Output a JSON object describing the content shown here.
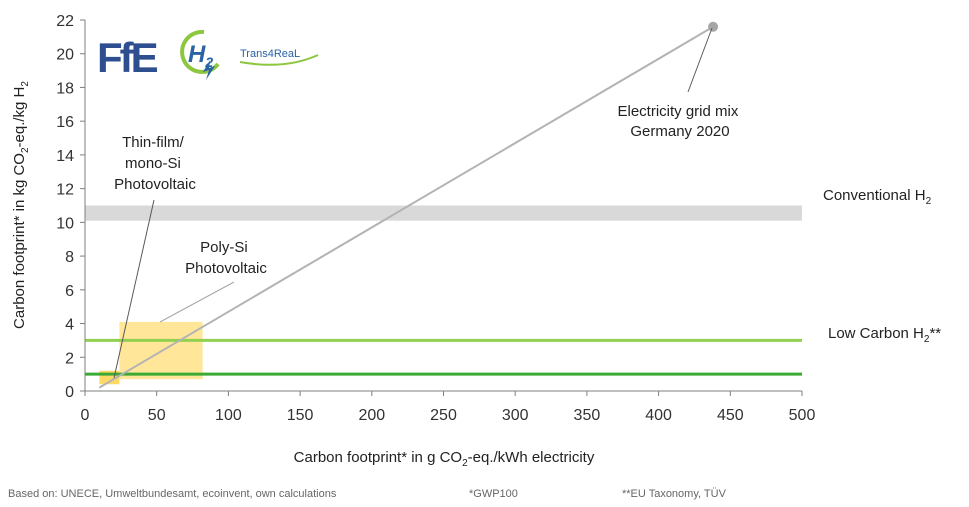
{
  "chart_data": {
    "type": "line",
    "xlabel_parts": [
      "Carbon footprint* in g CO",
      "2",
      "-eq./kWh electricity"
    ],
    "ylabel_parts": [
      "Carbon footprint* in kg CO",
      "2",
      "-eq./kg H",
      "2"
    ],
    "xlim": [
      0,
      500
    ],
    "ylim": [
      0,
      22
    ],
    "x_ticks": [
      "0",
      "50",
      "100",
      "150",
      "200",
      "250",
      "300",
      "350",
      "400",
      "450",
      "500"
    ],
    "y_ticks": [
      "0",
      "2",
      "4",
      "6",
      "8",
      "10",
      "12",
      "14",
      "16",
      "18",
      "20",
      "22"
    ],
    "grid": false,
    "series": [
      {
        "values_x": [
          10,
          438
        ],
        "values_y": [
          0.2,
          21.6
        ],
        "color": "#b3b3b3"
      }
    ],
    "bands": [
      {
        "y_range": [
          10.1,
          11.0
        ],
        "x_range": [
          0,
          500
        ],
        "color": "#d9d9d9"
      }
    ],
    "threshold_lines": [
      {
        "y": 3.0,
        "color": "#92d050"
      },
      {
        "y": 1.0,
        "color": "#3aaa35"
      }
    ],
    "boxes": [
      {
        "x_range": [
          24,
          82
        ],
        "y_range": [
          0.7,
          4.1
        ],
        "color": "#ffe699"
      },
      {
        "x_range": [
          10,
          24
        ],
        "y_range": [
          0.4,
          1.2
        ],
        "color": "#ffd966"
      }
    ],
    "marker": {
      "x": 438,
      "y": 21.6,
      "color": "#a6a6a6"
    },
    "annotations": {
      "grid_mix": [
        "Electricity grid mix",
        "Germany 2020"
      ],
      "conventional": [
        "Conventional H",
        "2"
      ],
      "low_carbon": [
        "Low Carbon H",
        "2",
        "**"
      ],
      "thin_film": [
        "Thin-film/",
        "mono-Si",
        "Photovoltaic"
      ],
      "poly_si": [
        "Poly-Si",
        "Photovoltaic"
      ]
    }
  },
  "logos": {
    "ffe": "FfE",
    "h2_main": "H",
    "h2_sub": "2",
    "project": "Trans4ReaL"
  },
  "footnotes": {
    "sources": "Based on: UNECE, Umweltbundesamt, ecoinvent, own calculations",
    "gwp": "*GWP100",
    "taxonomy": "**EU Taxonomy, TÜV"
  },
  "colors": {
    "ffe_blue": "#2e4f8f",
    "h2_green": "#8dc63f",
    "h2_blue": "#2a62a6"
  }
}
